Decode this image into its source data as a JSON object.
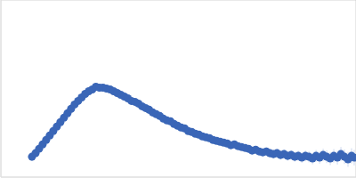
{
  "chart_data": {
    "type": "scatter",
    "color": "#3a66b7",
    "marker": "circle",
    "grid": true,
    "tick_labels": false,
    "xlim": [
      0,
      4
    ],
    "xticks": [
      1.15
    ],
    "ylim": [
      0,
      2
    ],
    "yticks": [
      1
    ],
    "x": [
      0.35,
      0.39,
      0.43,
      0.47,
      0.51,
      0.55,
      0.59,
      0.63,
      0.67,
      0.71,
      0.75,
      0.79,
      0.83,
      0.87,
      0.91,
      0.95,
      0.99,
      1.03,
      1.07,
      1.11,
      1.15,
      1.19,
      1.23,
      1.27,
      1.31,
      1.35,
      1.39,
      1.43,
      1.47,
      1.51,
      1.55,
      1.59,
      1.63,
      1.67,
      1.71,
      1.75,
      1.79,
      1.83,
      1.87,
      1.91,
      1.95,
      1.99,
      2.03,
      2.07,
      2.11,
      2.15,
      2.19,
      2.23,
      2.27,
      2.31,
      2.35,
      2.39,
      2.43,
      2.47,
      2.51,
      2.55,
      2.59,
      2.63,
      2.67,
      2.71,
      2.75,
      2.79,
      2.83,
      2.87,
      2.91,
      2.95,
      2.99,
      3.03,
      3.07,
      3.11,
      3.15,
      3.19,
      3.23,
      3.27,
      3.31,
      3.35,
      3.39,
      3.43,
      3.47,
      3.51,
      3.55,
      3.59,
      3.63,
      3.67,
      3.71,
      3.75,
      3.79,
      3.83,
      3.87,
      3.91,
      3.95,
      3.98
    ],
    "values": [
      0.23,
      0.27,
      0.32,
      0.37,
      0.42,
      0.47,
      0.52,
      0.57,
      0.62,
      0.67,
      0.72,
      0.77,
      0.82,
      0.86,
      0.9,
      0.94,
      0.97,
      0.99,
      1.02,
      1.01,
      1.01,
      1.0,
      0.99,
      0.97,
      0.95,
      0.93,
      0.91,
      0.89,
      0.86,
      0.85,
      0.83,
      0.8,
      0.78,
      0.76,
      0.73,
      0.71,
      0.69,
      0.66,
      0.64,
      0.63,
      0.6,
      0.58,
      0.56,
      0.55,
      0.52,
      0.51,
      0.49,
      0.48,
      0.46,
      0.45,
      0.44,
      0.42,
      0.41,
      0.4,
      0.39,
      0.38,
      0.36,
      0.37,
      0.35,
      0.34,
      0.33,
      0.32,
      0.3,
      0.31,
      0.29,
      0.28,
      0.29,
      0.27,
      0.26,
      0.27,
      0.25,
      0.26,
      0.24,
      0.25,
      0.23,
      0.24,
      0.22,
      0.24,
      0.23,
      0.21,
      0.24,
      0.22,
      0.25,
      0.23,
      0.21,
      0.24,
      0.22,
      0.26,
      0.23,
      0.2,
      0.24,
      0.22
    ],
    "errors": [
      0.005,
      0.005,
      0.005,
      0.005,
      0.006,
      0.006,
      0.006,
      0.006,
      0.007,
      0.007,
      0.007,
      0.008,
      0.008,
      0.008,
      0.009,
      0.009,
      0.01,
      0.01,
      0.01,
      0.01,
      0.01,
      0.011,
      0.011,
      0.012,
      0.012,
      0.012,
      0.013,
      0.013,
      0.014,
      0.014,
      0.015,
      0.015,
      0.016,
      0.016,
      0.017,
      0.018,
      0.018,
      0.019,
      0.02,
      0.02,
      0.021,
      0.022,
      0.022,
      0.023,
      0.024,
      0.025,
      0.026,
      0.027,
      0.028,
      0.029,
      0.03,
      0.031,
      0.032,
      0.033,
      0.034,
      0.035,
      0.036,
      0.037,
      0.038,
      0.039,
      0.04,
      0.041,
      0.042,
      0.043,
      0.044,
      0.045,
      0.046,
      0.047,
      0.048,
      0.05,
      0.051,
      0.052,
      0.054,
      0.055,
      0.056,
      0.058,
      0.06,
      0.061,
      0.063,
      0.065,
      0.066,
      0.068,
      0.07,
      0.072,
      0.074,
      0.076,
      0.078,
      0.08,
      0.082,
      0.084,
      0.086,
      0.088
    ]
  }
}
